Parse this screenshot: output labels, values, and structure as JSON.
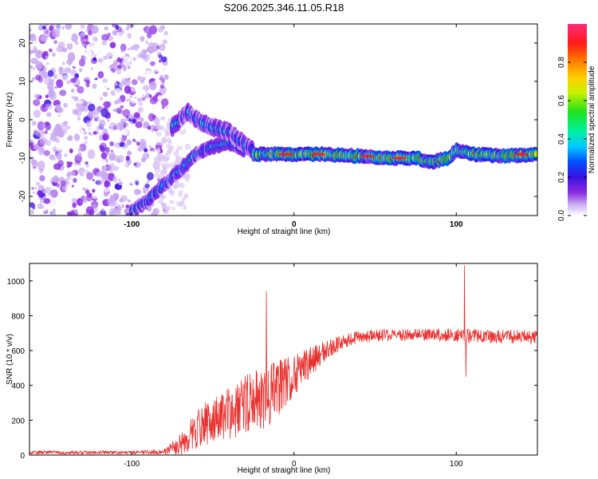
{
  "title": "S206.2025.346.11.05.R18",
  "colors": {
    "snr_line": "#e8302e",
    "axis": "#000000",
    "colormap": [
      "#ffffff",
      "#c8a8f0",
      "#8a2be2",
      "#3a10e0",
      "#0050ff",
      "#00c8ff",
      "#00f0a0",
      "#20e020",
      "#c8f000",
      "#ffd000",
      "#ff7000",
      "#ff1a1a",
      "#ff2a7a"
    ]
  },
  "chart_data": [
    {
      "type": "heatmap",
      "name": "spectrogram",
      "xlabel": "Height of straight line (km)",
      "ylabel": "Frequency (Hz)",
      "xlim": [
        -163,
        150
      ],
      "ylim": [
        -25,
        25
      ],
      "x_ticks": [
        -100,
        0,
        100
      ],
      "y_ticks": [
        20,
        10,
        0,
        -10,
        -20
      ],
      "colorbar": {
        "label": "Normalized spectral amplitude",
        "range": [
          0,
          1
        ],
        "ticks": [
          "0.0",
          "0.2",
          "0.4",
          "0.6",
          "0.8"
        ],
        "tick_values": [
          0.0,
          0.2,
          0.4,
          0.6,
          0.8
        ]
      },
      "ridge": {
        "description_free": true,
        "lower_branch": [
          [
            -100,
            -24
          ],
          [
            -90,
            -21
          ],
          [
            -80,
            -17
          ],
          [
            -70,
            -13
          ],
          [
            -60,
            -9
          ],
          [
            -50,
            -7
          ],
          [
            -40,
            -6
          ],
          [
            -30,
            -8
          ]
        ],
        "upper_branch": [
          [
            -75,
            -2
          ],
          [
            -65,
            2
          ],
          [
            -60,
            0
          ],
          [
            -50,
            -2
          ],
          [
            -40,
            -3
          ],
          [
            -35,
            -5
          ],
          [
            -25,
            -8
          ]
        ],
        "main_band": [
          [
            -25,
            -9
          ],
          [
            0,
            -9
          ],
          [
            20,
            -9
          ],
          [
            40,
            -9.5
          ],
          [
            60,
            -10
          ],
          [
            75,
            -10
          ],
          [
            85,
            -11
          ],
          [
            95,
            -10
          ],
          [
            100,
            -8
          ],
          [
            110,
            -9
          ],
          [
            130,
            -9.5
          ],
          [
            150,
            -9
          ]
        ]
      }
    },
    {
      "type": "line",
      "name": "snr",
      "xlabel": "Height of straight line (km)",
      "ylabel": "SNR (10 * v/v)",
      "xlim": [
        -163,
        150
      ],
      "ylim": [
        0,
        1100
      ],
      "x_ticks": [
        -100,
        0,
        100
      ],
      "y_ticks": [
        0,
        200,
        400,
        600,
        800,
        1000
      ],
      "envelope": {
        "x": [
          -163,
          -100,
          -80,
          -70,
          -60,
          -50,
          -40,
          -30,
          -20,
          -10,
          0,
          10,
          20,
          30,
          40,
          60,
          80,
          100,
          120,
          150
        ],
        "mean": [
          15,
          15,
          20,
          60,
          150,
          200,
          240,
          280,
          320,
          380,
          460,
          530,
          600,
          650,
          680,
          690,
          690,
          690,
          680,
          680
        ],
        "noise": [
          10,
          10,
          15,
          60,
          120,
          130,
          150,
          180,
          190,
          170,
          120,
          90,
          60,
          40,
          35,
          35,
          35,
          40,
          40,
          40
        ]
      },
      "spikes": [
        [
          -17,
          940
        ],
        [
          105,
          1090
        ],
        [
          106,
          450
        ]
      ]
    }
  ]
}
